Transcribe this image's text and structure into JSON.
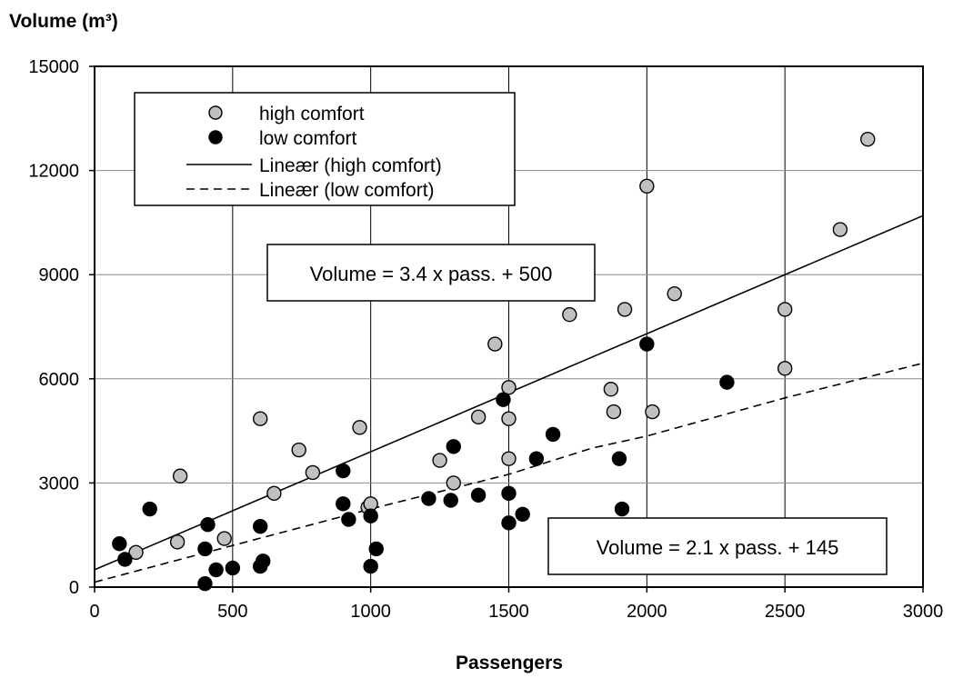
{
  "chart_data": {
    "type": "scatter",
    "xlabel": "Passengers",
    "ylabel": "Volume (m³)",
    "xlim": [
      0,
      3000
    ],
    "ylim": [
      0,
      15000
    ],
    "xticks": [
      "0",
      "500",
      "1000",
      "1500",
      "2000",
      "2500",
      "3000"
    ],
    "yticks": [
      "0",
      "3000",
      "6000",
      "9000",
      "12000",
      "15000"
    ],
    "grid": "vertical and horizontal at major ticks",
    "legend_position": "top-left",
    "legend": [
      {
        "label": "high comfort",
        "kind": "marker",
        "fill": "#c0c0c0"
      },
      {
        "label": "low comfort",
        "kind": "marker",
        "fill": "#000000"
      },
      {
        "label": "Lineær (high comfort)",
        "kind": "line",
        "dash": "solid"
      },
      {
        "label": "Lineær (low comfort)",
        "kind": "line",
        "dash": "dashed"
      }
    ],
    "annotations": [
      {
        "text": "Volume = 3.4 x pass. + 500",
        "anchor": "upper-center"
      },
      {
        "text": "Volume = 2.1 x pass. + 145",
        "anchor": "lower-right"
      }
    ],
    "series": [
      {
        "name": "high comfort",
        "color": "#c0c0c0",
        "points": [
          [
            150,
            1000
          ],
          [
            300,
            1300
          ],
          [
            310,
            3200
          ],
          [
            470,
            1400
          ],
          [
            600,
            4850
          ],
          [
            650,
            2700
          ],
          [
            740,
            3950
          ],
          [
            790,
            3300
          ],
          [
            960,
            4600
          ],
          [
            990,
            2300
          ],
          [
            1000,
            2400
          ],
          [
            1250,
            3650
          ],
          [
            1300,
            3000
          ],
          [
            1390,
            4900
          ],
          [
            1450,
            7000
          ],
          [
            1500,
            5750
          ],
          [
            1500,
            4850
          ],
          [
            1500,
            3700
          ],
          [
            1720,
            7850
          ],
          [
            1870,
            5700
          ],
          [
            1880,
            5050
          ],
          [
            1920,
            8000
          ],
          [
            2000,
            11550
          ],
          [
            2020,
            5050
          ],
          [
            2100,
            8450
          ],
          [
            2500,
            8000
          ],
          [
            2500,
            6300
          ],
          [
            2700,
            10300
          ],
          [
            2800,
            12900
          ]
        ]
      },
      {
        "name": "low comfort",
        "color": "#000000",
        "points": [
          [
            90,
            1250
          ],
          [
            110,
            800
          ],
          [
            200,
            2250
          ],
          [
            400,
            100
          ],
          [
            400,
            1100
          ],
          [
            410,
            1800
          ],
          [
            440,
            500
          ],
          [
            500,
            550
          ],
          [
            600,
            600
          ],
          [
            600,
            1750
          ],
          [
            610,
            750
          ],
          [
            900,
            3350
          ],
          [
            900,
            2400
          ],
          [
            920,
            1950
          ],
          [
            1000,
            600
          ],
          [
            1000,
            2050
          ],
          [
            1020,
            1100
          ],
          [
            1210,
            2550
          ],
          [
            1290,
            2500
          ],
          [
            1300,
            4050
          ],
          [
            1390,
            2650
          ],
          [
            1480,
            5400
          ],
          [
            1500,
            2700
          ],
          [
            1500,
            1850
          ],
          [
            1550,
            2100
          ],
          [
            1600,
            3700
          ],
          [
            1660,
            4400
          ],
          [
            1900,
            3700
          ],
          [
            1910,
            2250
          ],
          [
            2000,
            7000
          ],
          [
            2290,
            5900
          ]
        ]
      },
      {
        "name": "Lineær (high comfort)",
        "kind": "trendline",
        "dash": "solid",
        "points": [
          [
            0,
            500
          ],
          [
            3000,
            10700
          ]
        ]
      },
      {
        "name": "Lineær (low comfort)",
        "kind": "trendline",
        "dash": "dashed",
        "points": [
          [
            0,
            145
          ],
          [
            500,
            1200
          ],
          [
            1000,
            2250
          ],
          [
            1500,
            3250
          ],
          [
            1800,
            4000
          ],
          [
            2000,
            4350
          ],
          [
            2500,
            5450
          ],
          [
            3000,
            6450
          ]
        ]
      }
    ]
  }
}
